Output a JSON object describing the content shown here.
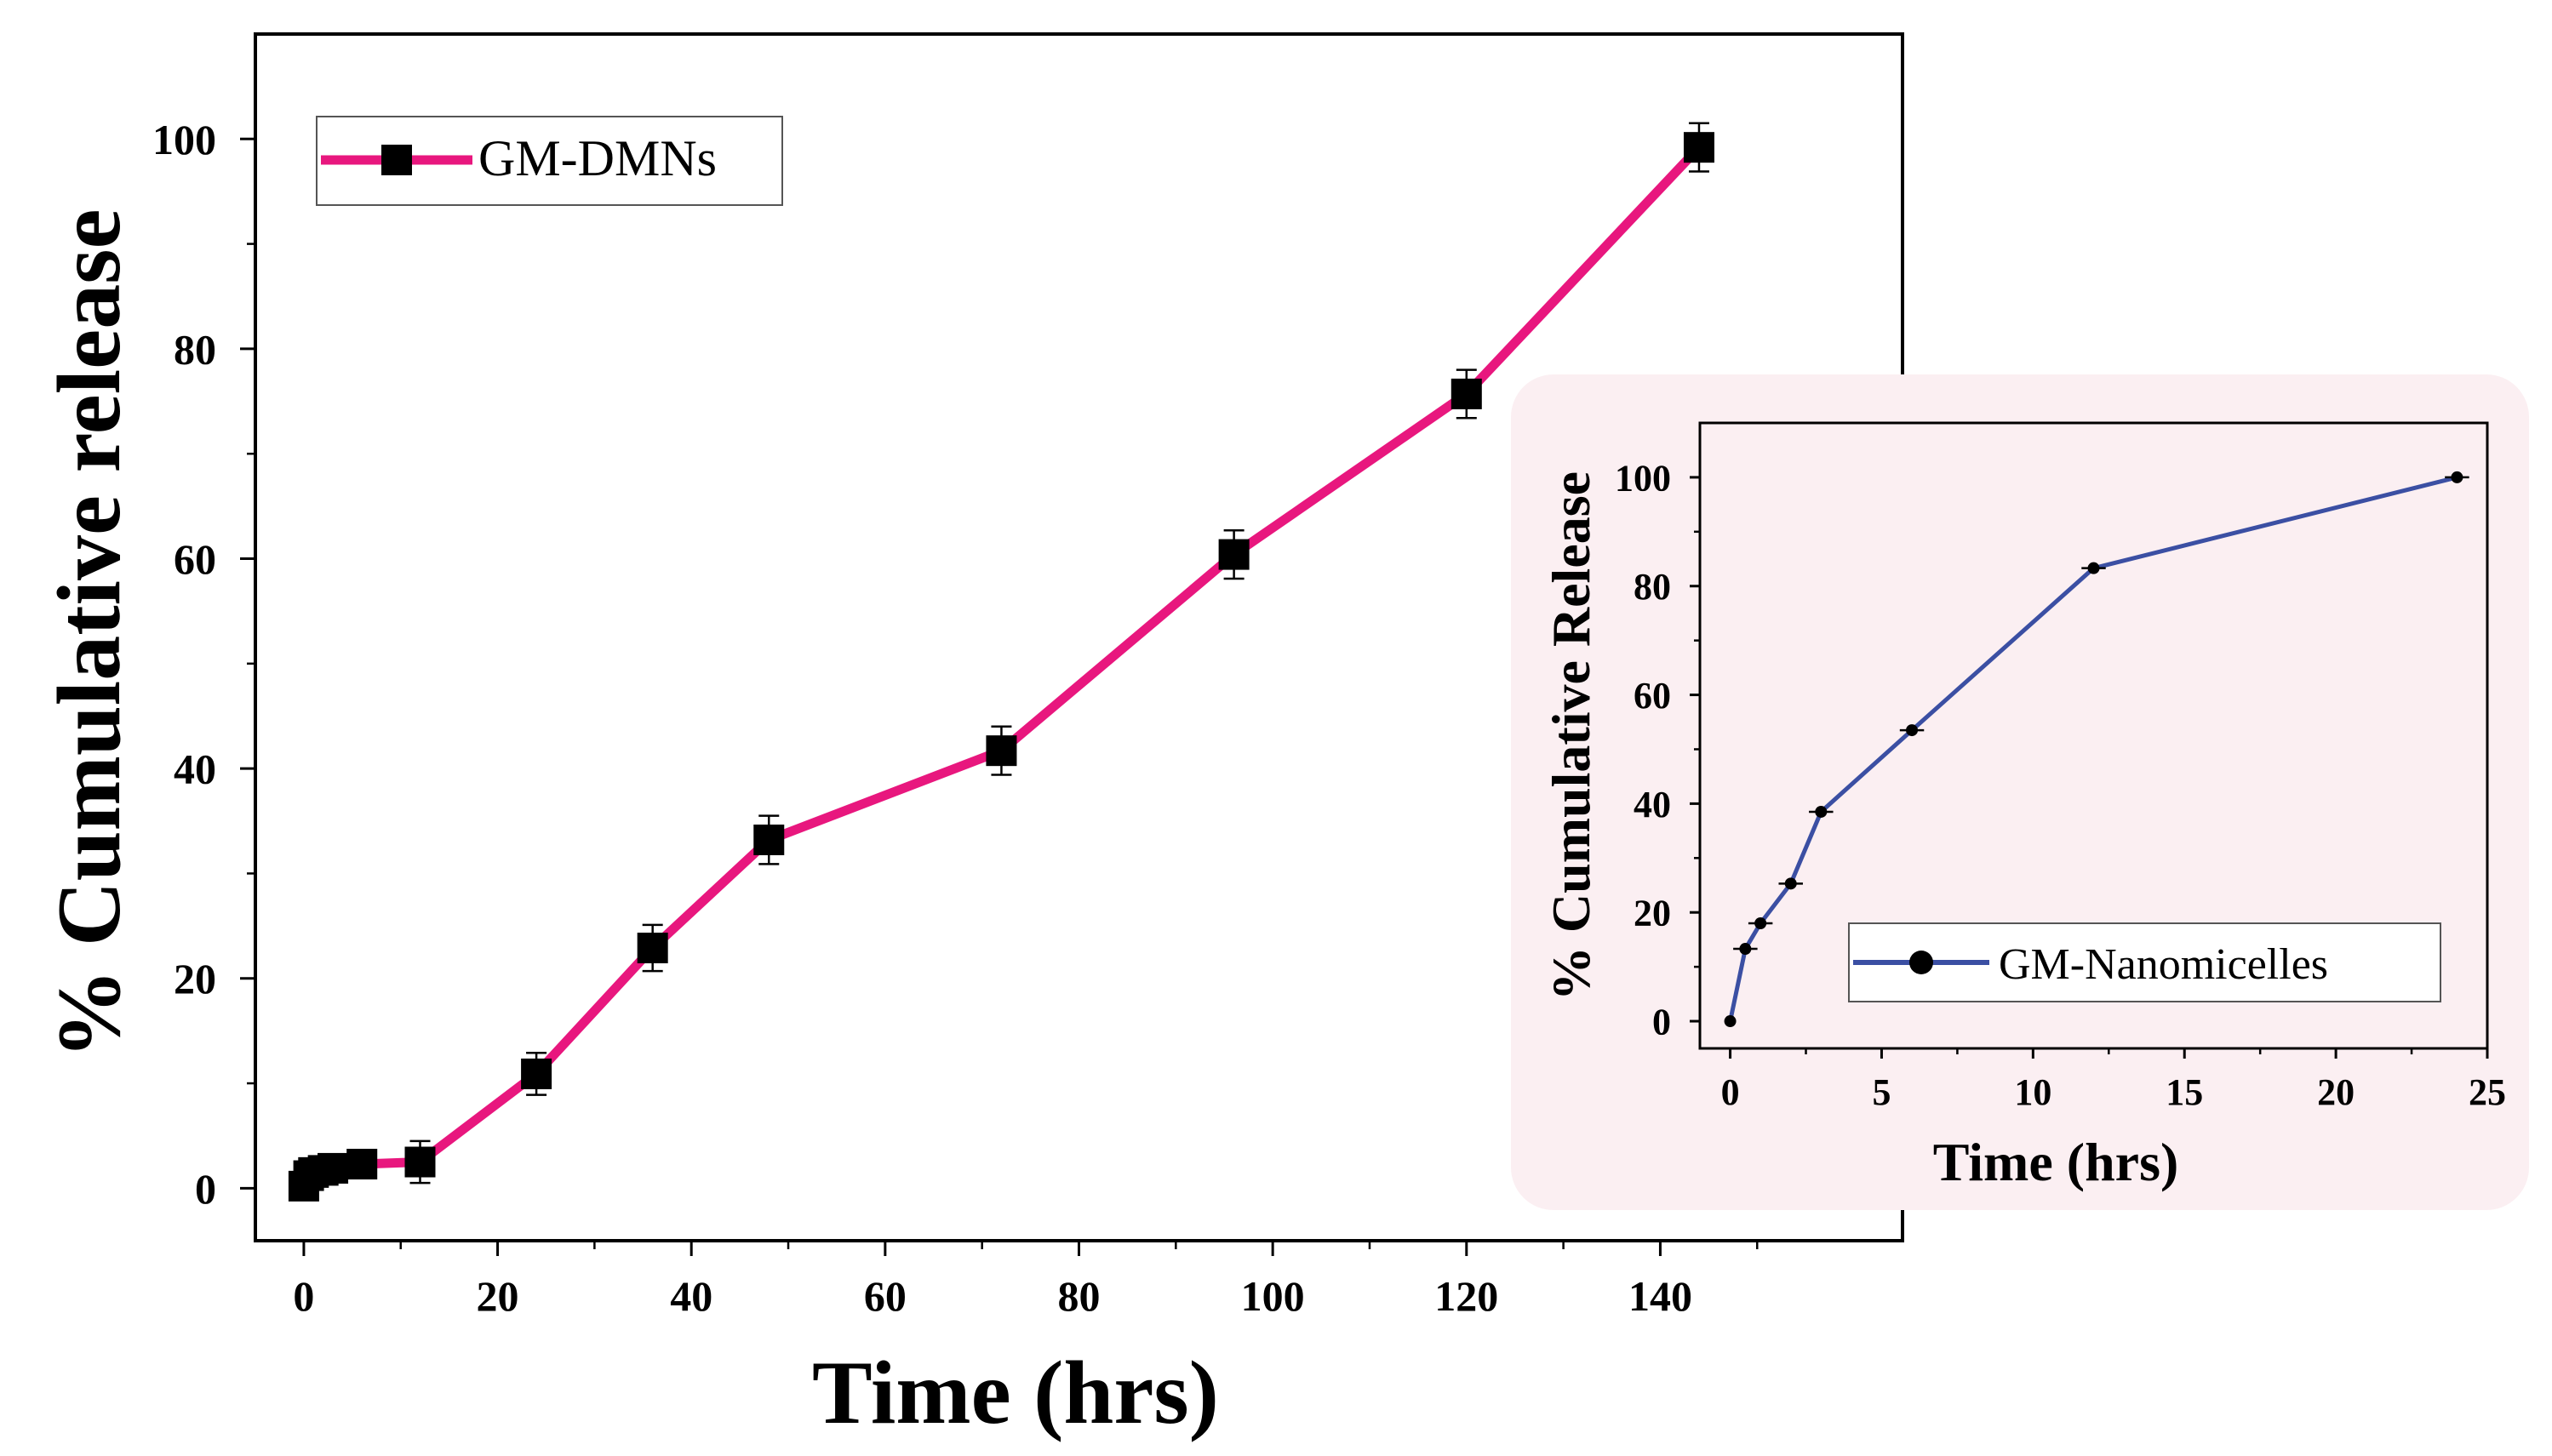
{
  "chart_data": [
    {
      "id": "main",
      "type": "line",
      "title": "",
      "xlabel": "Time (hrs)",
      "ylabel": "% Cumulative release",
      "xlim": [
        -5,
        165
      ],
      "ylim": [
        -5,
        110
      ],
      "xticks": [
        0,
        20,
        40,
        60,
        80,
        100,
        120,
        140
      ],
      "yticks": [
        0,
        20,
        40,
        60,
        80,
        100
      ],
      "grid": false,
      "legend": {
        "position": "top-left"
      },
      "series": [
        {
          "name": "GM-DMNs",
          "color": "#e8177e",
          "marker": "square",
          "x": [
            0,
            0.5,
            1,
            2,
            3,
            6,
            12,
            24,
            36,
            48,
            72,
            96,
            120,
            144
          ],
          "y": [
            0.2,
            1.2,
            1.5,
            1.7,
            1.9,
            2.3,
            2.5,
            10.9,
            22.9,
            33.2,
            41.7,
            60.4,
            75.7,
            99.2
          ],
          "err": [
            0.4,
            0.4,
            0.4,
            0.4,
            0.4,
            0.5,
            2.0,
            2.0,
            2.2,
            2.3,
            2.3,
            2.3,
            2.3,
            2.3
          ]
        }
      ]
    },
    {
      "id": "inset",
      "type": "line",
      "title": "",
      "xlabel": "Time (hrs)",
      "ylabel": "% Cumulative Release",
      "xlim": [
        -1,
        25
      ],
      "ylim": [
        -5,
        110
      ],
      "xticks": [
        0,
        5,
        10,
        15,
        20,
        25
      ],
      "yticks": [
        0,
        20,
        40,
        60,
        80,
        100
      ],
      "grid": false,
      "legend": {
        "position": "bottom-center"
      },
      "series": [
        {
          "name": "GM-Nanomicelles",
          "color": "#3b4fa3",
          "marker": "circle",
          "x": [
            0,
            0.5,
            1,
            2,
            3,
            6,
            12,
            24
          ],
          "y": [
            0,
            13.3,
            18,
            25.3,
            38.5,
            53.5,
            83.3,
            100
          ],
          "xerr": [
            0,
            0.4,
            0.4,
            0.4,
            0.4,
            0.4,
            0.4,
            0.4
          ]
        }
      ]
    }
  ]
}
